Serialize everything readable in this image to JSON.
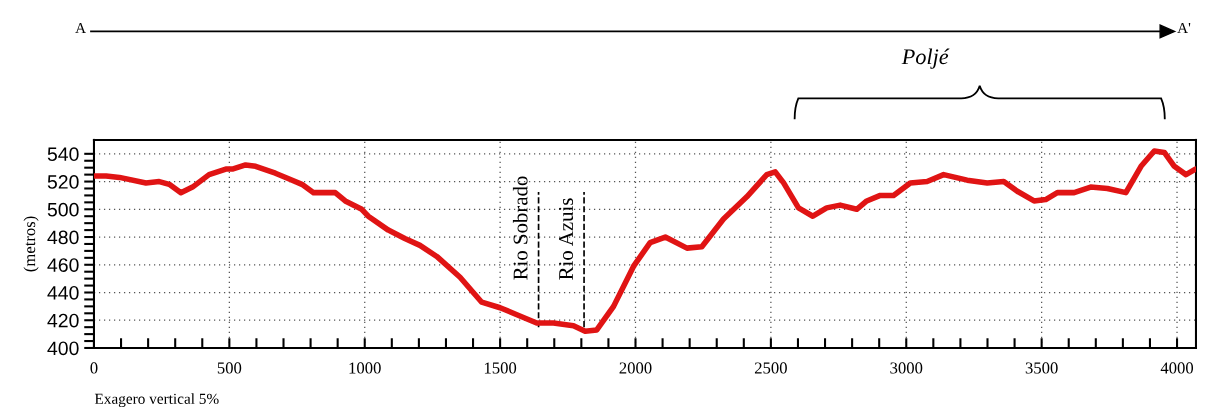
{
  "chart_data": {
    "type": "line",
    "ylabel": "(metros)",
    "annotations": [
      "A",
      "A'",
      "Exagero vertical 5%",
      "Poljé"
    ],
    "x": [
      0,
      45,
      94,
      192,
      241,
      278,
      321,
      364,
      425,
      487,
      511,
      560,
      597,
      670,
      719,
      768,
      811,
      891,
      928,
      989,
      1013,
      1087,
      1148,
      1204,
      1266,
      1352,
      1432,
      1500,
      1562,
      1635,
      1697,
      1771,
      1814,
      1857,
      1919,
      1993,
      2054,
      2110,
      2190,
      2245,
      2325,
      2411,
      2485,
      2516,
      2547,
      2602,
      2655,
      2706,
      2756,
      2817,
      2854,
      2904,
      2953,
      3015,
      3077,
      3138,
      3225,
      3299,
      3360,
      3410,
      3472,
      3515,
      3558,
      3620,
      3681,
      3743,
      3811,
      3867,
      3916,
      3953,
      3990,
      4033,
      4068
    ],
    "series": [
      {
        "color": "#e01414",
        "values": [
          524,
          524,
          523,
          519,
          520,
          518,
          512,
          516,
          525,
          529,
          529,
          532,
          531,
          526,
          522,
          518,
          512,
          512,
          506,
          500,
          495,
          485,
          479,
          474,
          466,
          451,
          433,
          429,
          424,
          418,
          418,
          416,
          412,
          413,
          430,
          459,
          476,
          480,
          472,
          473,
          493,
          509,
          525,
          527,
          519,
          501,
          495,
          501,
          503,
          500,
          506,
          510,
          510,
          519,
          520,
          525,
          521,
          519,
          520,
          513,
          506,
          507,
          512,
          512,
          516,
          515,
          512,
          531,
          542,
          541,
          531,
          525,
          529
        ]
      }
    ],
    "xlim": [
      0,
      4070
    ],
    "ylim": [
      400,
      550
    ],
    "xticks": [
      0,
      {
        "value": 100,
        "label": null
      },
      {
        "value": 200,
        "label": null
      },
      {
        "value": 300,
        "label": null
      },
      {
        "value": 400,
        "label": null
      },
      500,
      {
        "value": 600,
        "label": null
      },
      {
        "value": 700,
        "label": null
      },
      {
        "value": 800,
        "label": null
      },
      {
        "value": 900,
        "label": null
      },
      1000,
      {
        "value": 1100,
        "label": null
      },
      {
        "value": 1200,
        "label": null
      },
      {
        "value": 1300,
        "label": null
      },
      {
        "value": 1400,
        "label": null
      },
      1500,
      {
        "value": 1600,
        "label": null
      },
      {
        "value": 1700,
        "label": null
      },
      {
        "value": 1800,
        "label": null
      },
      {
        "value": 1900,
        "label": null
      },
      2000,
      {
        "value": 2100,
        "label": null
      },
      {
        "value": 2200,
        "label": null
      },
      {
        "value": 2300,
        "label": null
      },
      {
        "value": 2400,
        "label": null
      },
      2500,
      {
        "value": 2600,
        "label": null
      },
      {
        "value": 2700,
        "label": null
      },
      {
        "value": 2800,
        "label": null
      },
      {
        "value": 2900,
        "label": null
      },
      3000,
      {
        "value": 3100,
        "label": null
      },
      {
        "value": 3200,
        "label": null
      },
      {
        "value": 3300,
        "label": null
      },
      {
        "value": 3400,
        "label": null
      },
      3500,
      {
        "value": 3600,
        "label": null
      },
      {
        "value": 3700,
        "label": null
      },
      {
        "value": 3800,
        "label": null
      },
      {
        "value": 3900,
        "label": null
      },
      4000
    ],
    "yticks": [
      400,
      {
        "value": 405,
        "label": null
      },
      {
        "value": 410,
        "label": null
      },
      {
        "value": 415,
        "label": null
      },
      420,
      {
        "value": 425,
        "label": null
      },
      {
        "value": 430,
        "label": null
      },
      {
        "value": 435,
        "label": null
      },
      440,
      {
        "value": 445,
        "label": null
      },
      {
        "value": 450,
        "label": null
      },
      {
        "value": 455,
        "label": null
      },
      460,
      {
        "value": 465,
        "label": null
      },
      {
        "value": 470,
        "label": null
      },
      {
        "value": 475,
        "label": null
      },
      480,
      {
        "value": 485,
        "label": null
      },
      {
        "value": 490,
        "label": null
      },
      {
        "value": 495,
        "label": null
      },
      500,
      {
        "value": 505,
        "label": null
      },
      {
        "value": 510,
        "label": null
      },
      {
        "value": 515,
        "label": null
      },
      520,
      {
        "value": 525,
        "label": null
      },
      {
        "value": 530,
        "label": null
      },
      {
        "value": 535,
        "label": null
      },
      540
    ],
    "ref_lines": [
      {
        "axis": "x",
        "value": 1642,
        "label": "Rio Sobrado",
        "line_style": "dashed"
      },
      {
        "axis": "x",
        "value": 1810,
        "label": "Rio Azuis",
        "line_style": "dashed"
      }
    ],
    "grid": true,
    "line_style": "solid",
    "marker": "none",
    "legend": false
  }
}
